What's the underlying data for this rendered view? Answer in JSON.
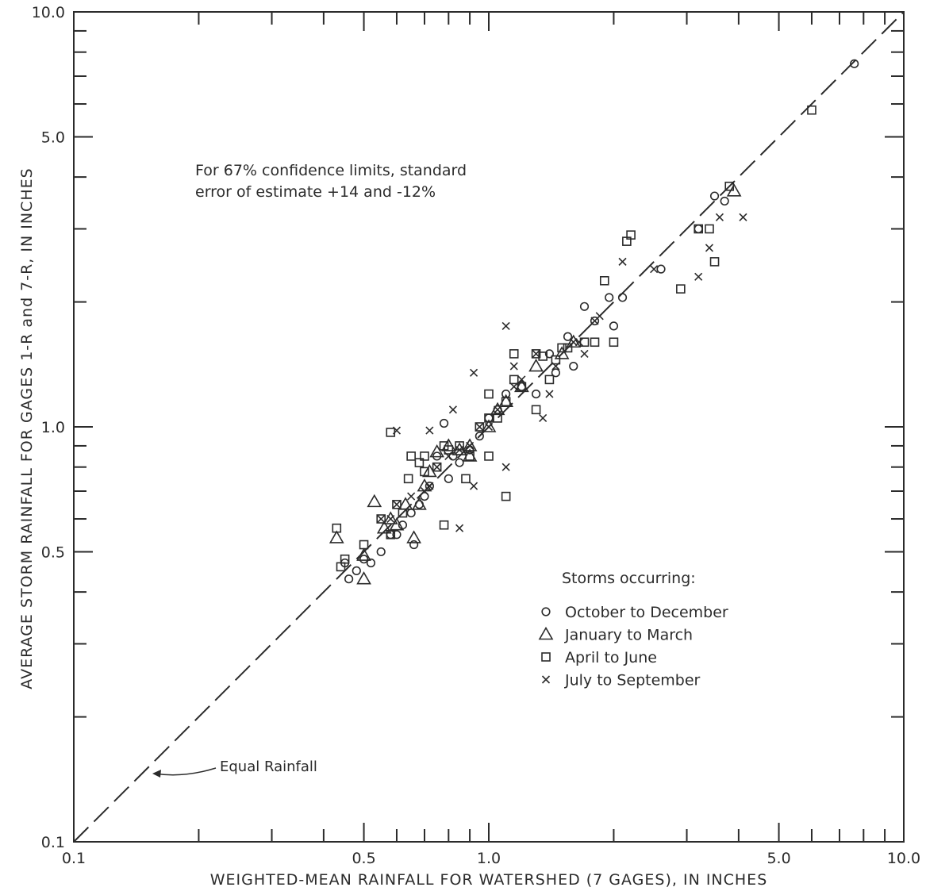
{
  "chart_data": {
    "type": "scatter",
    "title": "",
    "xlabel": "WEIGHTED-MEAN RAINFALL FOR WATERSHED (7 GAGES), IN INCHES",
    "ylabel": "AVERAGE STORM RAINFALL FOR GAGES 1-R and 7-R, IN INCHES",
    "xscale": "log",
    "yscale": "log",
    "xlim": [
      0.1,
      10.0
    ],
    "ylim": [
      0.1,
      10.0
    ],
    "x_ticks": [
      "0.1",
      "0.5",
      "1.0",
      "5.0",
      "10.0"
    ],
    "y_ticks": [
      "0.1",
      "0.5",
      "1.0",
      "5.0",
      "10.0"
    ],
    "grid": false,
    "legend_position": "lower-right",
    "legend_title": "Storms occurring:",
    "note_lines": [
      "For 67% confidence limits, standard",
      "error of estimate +14 and -12%"
    ],
    "reference_line": {
      "label": "Equal Rainfall",
      "from": [
        0.1,
        0.1
      ],
      "to": [
        10.0,
        10.0
      ]
    },
    "series": [
      {
        "name": "October to December",
        "marker": "circle",
        "points": [
          [
            7.6,
            7.5
          ],
          [
            3.5,
            3.6
          ],
          [
            3.7,
            3.5
          ],
          [
            3.2,
            3.0
          ],
          [
            2.6,
            2.4
          ],
          [
            2.1,
            2.05
          ],
          [
            2.0,
            1.75
          ],
          [
            1.95,
            2.05
          ],
          [
            1.8,
            1.8
          ],
          [
            1.7,
            1.95
          ],
          [
            1.55,
            1.65
          ],
          [
            1.6,
            1.4
          ],
          [
            1.4,
            1.5
          ],
          [
            1.45,
            1.35
          ],
          [
            1.3,
            1.2
          ],
          [
            1.2,
            1.25
          ],
          [
            1.1,
            1.2
          ],
          [
            1.05,
            1.1
          ],
          [
            1.0,
            1.05
          ],
          [
            0.95,
            0.95
          ],
          [
            0.9,
            0.88
          ],
          [
            0.85,
            0.82
          ],
          [
            0.8,
            0.75
          ],
          [
            0.78,
            1.02
          ],
          [
            0.75,
            0.85
          ],
          [
            0.72,
            0.72
          ],
          [
            0.7,
            0.68
          ],
          [
            0.68,
            0.65
          ],
          [
            0.65,
            0.62
          ],
          [
            0.62,
            0.58
          ],
          [
            0.58,
            0.55
          ],
          [
            0.55,
            0.5
          ],
          [
            0.5,
            0.48
          ],
          [
            0.48,
            0.45
          ],
          [
            0.46,
            0.43
          ],
          [
            0.45,
            0.47
          ],
          [
            0.6,
            0.55
          ],
          [
            0.66,
            0.52
          ],
          [
            0.52,
            0.47
          ],
          [
            0.82,
            0.85
          ]
        ]
      },
      {
        "name": "January to March",
        "marker": "triangle",
        "points": [
          [
            3.9,
            3.7
          ],
          [
            1.6,
            1.6
          ],
          [
            1.5,
            1.5
          ],
          [
            1.3,
            1.4
          ],
          [
            1.2,
            1.25
          ],
          [
            1.1,
            1.15
          ],
          [
            1.05,
            1.1
          ],
          [
            1.0,
            1.0
          ],
          [
            0.9,
            0.9
          ],
          [
            0.85,
            0.88
          ],
          [
            0.8,
            0.9
          ],
          [
            0.75,
            0.87
          ],
          [
            0.72,
            0.78
          ],
          [
            0.7,
            0.72
          ],
          [
            0.68,
            0.65
          ],
          [
            0.63,
            0.65
          ],
          [
            0.6,
            0.58
          ],
          [
            0.58,
            0.6
          ],
          [
            0.56,
            0.57
          ],
          [
            0.53,
            0.66
          ],
          [
            0.5,
            0.49
          ],
          [
            0.5,
            0.43
          ],
          [
            0.43,
            0.54
          ],
          [
            0.66,
            0.54
          ],
          [
            0.9,
            0.85
          ]
        ]
      },
      {
        "name": "April to June",
        "marker": "square",
        "points": [
          [
            6.0,
            5.8
          ],
          [
            3.8,
            3.8
          ],
          [
            3.2,
            3.0
          ],
          [
            3.4,
            3.0
          ],
          [
            3.5,
            2.5
          ],
          [
            2.9,
            2.15
          ],
          [
            2.2,
            2.9
          ],
          [
            2.15,
            2.8
          ],
          [
            1.9,
            2.25
          ],
          [
            2.0,
            1.6
          ],
          [
            1.8,
            1.6
          ],
          [
            1.55,
            1.55
          ],
          [
            1.5,
            1.55
          ],
          [
            1.4,
            1.3
          ],
          [
            1.35,
            1.48
          ],
          [
            1.3,
            1.5
          ],
          [
            1.3,
            1.1
          ],
          [
            1.2,
            1.25
          ],
          [
            1.15,
            1.3
          ],
          [
            1.1,
            1.15
          ],
          [
            1.05,
            1.05
          ],
          [
            1.0,
            1.2
          ],
          [
            1.0,
            1.05
          ],
          [
            0.95,
            1.0
          ],
          [
            0.9,
            0.85
          ],
          [
            0.88,
            0.75
          ],
          [
            0.85,
            0.9
          ],
          [
            0.8,
            0.88
          ],
          [
            0.78,
            0.9
          ],
          [
            0.75,
            0.8
          ],
          [
            0.7,
            0.85
          ],
          [
            0.7,
            0.78
          ],
          [
            0.68,
            0.82
          ],
          [
            0.65,
            0.85
          ],
          [
            0.62,
            0.62
          ],
          [
            0.6,
            0.65
          ],
          [
            0.58,
            0.97
          ],
          [
            0.58,
            0.55
          ],
          [
            0.55,
            0.6
          ],
          [
            0.5,
            0.52
          ],
          [
            0.45,
            0.48
          ],
          [
            0.44,
            0.46
          ],
          [
            0.43,
            0.57
          ],
          [
            0.64,
            0.75
          ],
          [
            0.78,
            0.58
          ],
          [
            1.15,
            1.5
          ],
          [
            1.45,
            1.45
          ],
          [
            1.7,
            1.6
          ],
          [
            1.0,
            0.85
          ],
          [
            1.1,
            0.68
          ]
        ]
      },
      {
        "name": "July to September",
        "marker": "x",
        "points": [
          [
            4.1,
            3.2
          ],
          [
            3.6,
            3.2
          ],
          [
            3.4,
            2.7
          ],
          [
            3.2,
            2.3
          ],
          [
            2.5,
            2.4
          ],
          [
            2.1,
            2.5
          ],
          [
            1.8,
            1.8
          ],
          [
            1.7,
            1.5
          ],
          [
            1.6,
            1.6
          ],
          [
            1.45,
            1.4
          ],
          [
            1.4,
            1.2
          ],
          [
            1.35,
            1.05
          ],
          [
            1.3,
            1.5
          ],
          [
            1.2,
            1.3
          ],
          [
            1.15,
            1.4
          ],
          [
            1.1,
            1.75
          ],
          [
            1.05,
            1.1
          ],
          [
            1.0,
            1.0
          ],
          [
            0.95,
            1.0
          ],
          [
            0.9,
            0.9
          ],
          [
            0.85,
            0.88
          ],
          [
            0.8,
            0.85
          ],
          [
            0.75,
            0.8
          ],
          [
            0.72,
            0.72
          ],
          [
            0.7,
            0.7
          ],
          [
            0.65,
            0.68
          ],
          [
            0.6,
            0.65
          ],
          [
            0.6,
            0.98
          ],
          [
            0.58,
            0.6
          ],
          [
            0.55,
            0.6
          ],
          [
            0.85,
            0.57
          ],
          [
            0.92,
            0.72
          ],
          [
            1.1,
            0.8
          ],
          [
            0.82,
            1.1
          ],
          [
            0.92,
            1.35
          ],
          [
            0.72,
            0.98
          ],
          [
            1.15,
            1.25
          ],
          [
            1.65,
            1.6
          ],
          [
            1.85,
            1.85
          ]
        ]
      }
    ]
  }
}
